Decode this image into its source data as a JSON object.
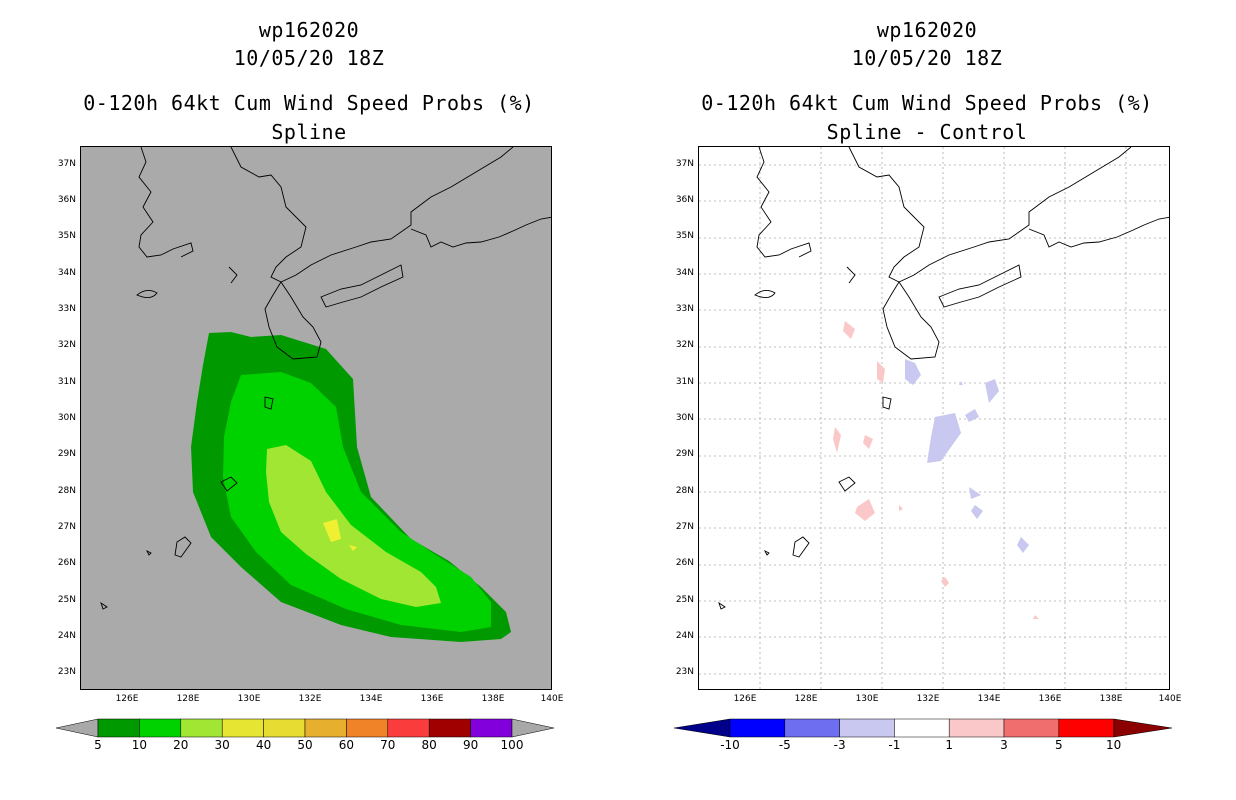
{
  "left": {
    "title_line1": "wp162020",
    "title_line2": "10/05/20 18Z",
    "title_line3": "0-120h 64kt Cum Wind Speed Probs (%)",
    "title_line4": "Spline",
    "colorbar": {
      "colors": [
        "#009a00",
        "#00d200",
        "#a0e632",
        "#e6e632",
        "#e6dc32",
        "#e6af2d",
        "#f08228",
        "#fa3c3c",
        "#a00000",
        "#8200dc"
      ],
      "labels": [
        "5",
        "10",
        "20",
        "30",
        "40",
        "50",
        "60",
        "70",
        "80",
        "90",
        "100"
      ]
    }
  },
  "right": {
    "title_line1": "wp162020",
    "title_line2": "10/05/20 18Z",
    "title_line3": "0-120h 64kt Cum Wind Speed Probs (%)",
    "title_line4": "Spline - Control",
    "colorbar": {
      "colors": [
        "#0000ff",
        "#6e6ef0",
        "#c8c8f0",
        "#ffffff",
        "#fac8c8",
        "#f06e6e",
        "#ff0000"
      ],
      "end_low": "#00008b",
      "end_high": "#8b0000",
      "labels": [
        "-10",
        "-5",
        "-3",
        "-1",
        "1",
        "3",
        "5",
        "10"
      ]
    }
  },
  "axes": {
    "lat_labels": [
      "37N",
      "36N",
      "35N",
      "34N",
      "33N",
      "32N",
      "31N",
      "30N",
      "29N",
      "28N",
      "27N",
      "26N",
      "25N",
      "24N",
      "23N"
    ],
    "lon_labels": [
      "126E",
      "128E",
      "130E",
      "132E",
      "134E",
      "136E",
      "138E",
      "140E"
    ],
    "lat_range": [
      22.5,
      37.5
    ],
    "lon_range": [
      124.5,
      140
    ]
  }
}
